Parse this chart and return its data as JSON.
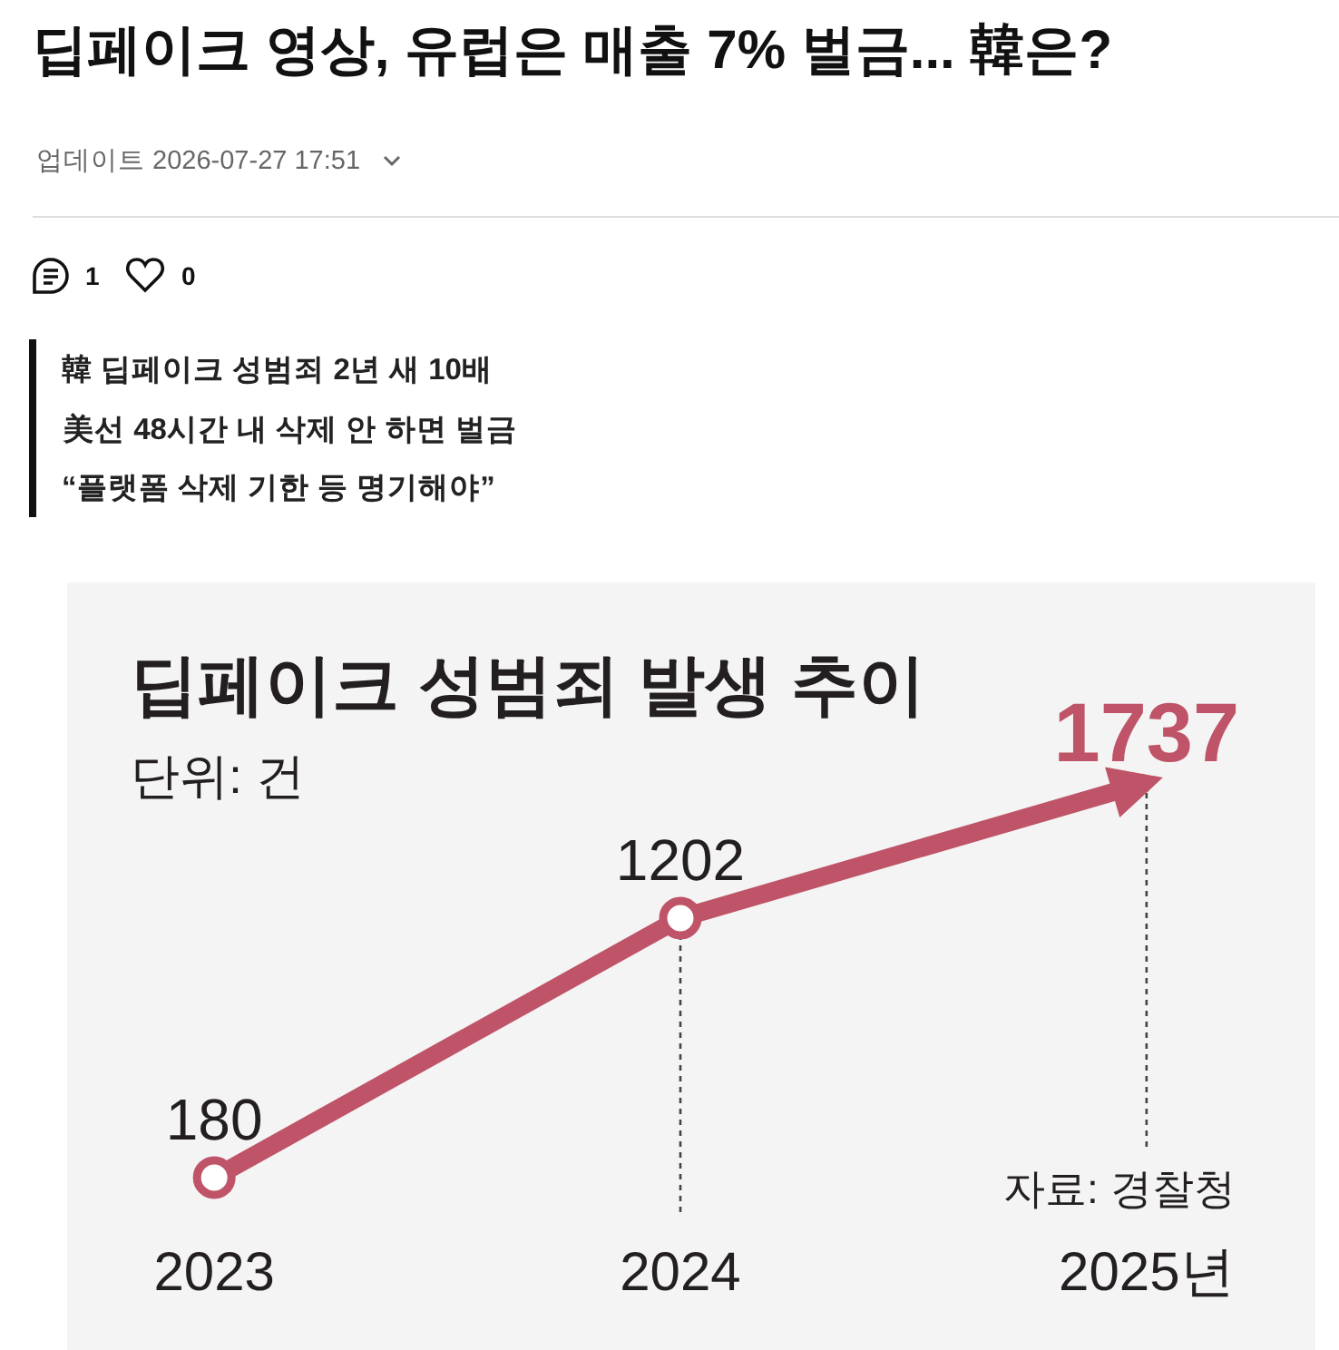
{
  "chart_data": {
    "type": "line",
    "title": "딥페이크 영상, 유럽은 매출 7% 벌금... 韓은?",
    "subtitle": "딥페이크 성범죄 발생 추이",
    "ylabel": "단위: 건",
    "annotations": [
      "업데이트 2026-07-27 17:51",
      "1",
      "0",
      "韓 딥페이크 성범죄 2년 새 10배",
      "美선 48시간 내 삭제 안 하면 벌금",
      "“플랫폼 삭제 기한 등 명기해야”",
      "자료: 경찰청"
    ],
    "categories": [
      "2023",
      "2024",
      "2025년"
    ],
    "values": [
      180,
      1202,
      1737
    ],
    "color": "#bf5468",
    "marker": "circle",
    "data_labels": true,
    "tick_labels": "x",
    "ref_lines": [
      {
        "axis": "x",
        "value": "2024",
        "line_style": "dashed",
        "color": "#444444"
      },
      {
        "axis": "x",
        "value": "2025년",
        "line_style": "dashed",
        "color": "#444444"
      }
    ]
  }
}
